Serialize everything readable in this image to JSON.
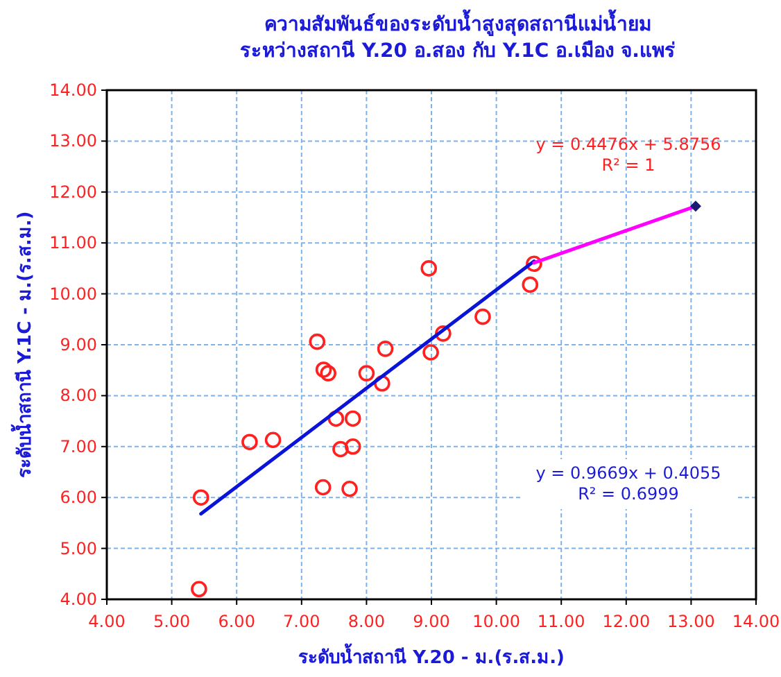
{
  "chart_data": {
    "type": "scatter",
    "title": "ความสัมพันธ์ของระดับน้ำสูงสุดสถานีแม่น้ำยม\nระหว่างสถานี Y.20 อ.สอง กับ Y.1C อ.เมือง จ.แพร่",
    "xlabel": "ระดับน้ำสถานี Y.20 - ม.(ร.ส.ม.)",
    "ylabel": "ระดับน้ำสถานี Y.1C - ม.(ร.ส.ม.)",
    "xlim": [
      4,
      14
    ],
    "ylim": [
      4,
      14
    ],
    "xticks": [
      {
        "value": 4,
        "label": "4.00"
      },
      {
        "value": 5,
        "label": "5.00"
      },
      {
        "value": 6,
        "label": "6.00"
      },
      {
        "value": 7,
        "label": "7.00"
      },
      {
        "value": 8,
        "label": "8.00"
      },
      {
        "value": 9,
        "label": "9.00"
      },
      {
        "value": 10,
        "label": "10.00"
      },
      {
        "value": 11,
        "label": "11.00"
      },
      {
        "value": 12,
        "label": "12.00"
      },
      {
        "value": 13,
        "label": "13.00"
      },
      {
        "value": 14,
        "label": "14.00"
      }
    ],
    "yticks": [
      {
        "value": 4,
        "label": "4.00"
      },
      {
        "value": 5,
        "label": "5.00"
      },
      {
        "value": 6,
        "label": "6.00"
      },
      {
        "value": 7,
        "label": "7.00"
      },
      {
        "value": 8,
        "label": "8.00"
      },
      {
        "value": 9,
        "label": "9.00"
      },
      {
        "value": 10,
        "label": "10.00"
      },
      {
        "value": 11,
        "label": "11.00"
      },
      {
        "value": 12,
        "label": "12.00"
      },
      {
        "value": 13,
        "label": "13.00"
      },
      {
        "value": 14,
        "label": "14.00"
      }
    ],
    "grid": true,
    "series": [
      {
        "marker": "circle",
        "color": "#ff2020",
        "x": [
          5.42,
          5.45,
          6.2,
          6.56,
          7.24,
          7.34,
          7.41,
          7.33,
          7.53,
          7.6,
          7.79,
          7.79,
          7.74,
          8.0,
          8.24,
          8.29,
          8.96,
          8.99,
          9.18,
          9.79,
          10.52,
          10.58
        ],
        "values": [
          4.2,
          6.0,
          7.09,
          7.13,
          9.06,
          8.51,
          8.44,
          6.2,
          7.55,
          6.95,
          7.0,
          7.55,
          6.17,
          8.44,
          8.24,
          8.92,
          10.5,
          8.85,
          9.22,
          9.55,
          10.18,
          10.59
        ]
      },
      {
        "type": "line",
        "marker": "none",
        "color": "#0a14d8",
        "x": [
          5.45,
          10.58
        ],
        "values": [
          5.68,
          10.64
        ]
      },
      {
        "type": "line",
        "marker": "none",
        "color": "#ff00ff",
        "x": [
          10.58,
          13.07
        ],
        "values": [
          10.61,
          11.72
        ]
      },
      {
        "marker": "diamond",
        "color": "#1a1a70",
        "x": [
          13.07
        ],
        "values": [
          11.72
        ]
      }
    ],
    "annotations": [
      "y = 0.4476x + 5.8756\nR² = 1",
      "y = 0.9669x + 0.4055\nR² = 0.6999"
    ]
  }
}
